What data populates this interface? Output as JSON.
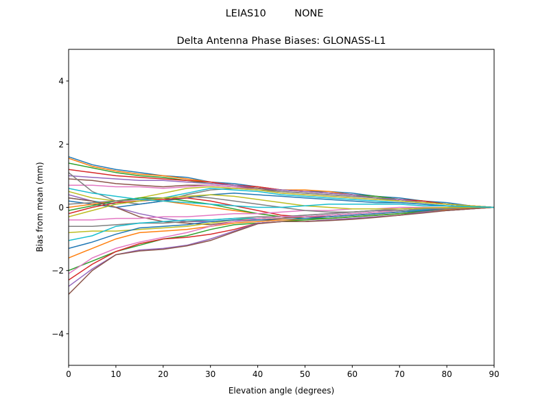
{
  "chart_data": {
    "type": "line",
    "suptitle": "LEIAS10         NONE",
    "title": "Delta Antenna Phase Biases: GLONASS-L1",
    "xlabel": "Elevation angle (degrees)",
    "ylabel": "Bias from mean (mm)",
    "xlim": [
      0,
      90
    ],
    "ylim": [
      -5,
      5
    ],
    "xticks": [
      0,
      10,
      20,
      30,
      40,
      50,
      60,
      70,
      80,
      90
    ],
    "yticks": [
      -4,
      -2,
      0,
      2,
      4
    ],
    "ytick_labels": [
      "−4",
      "−2",
      "0",
      "2",
      "4"
    ],
    "grid": false,
    "colors": [
      "#1f77b4",
      "#ff7f0e",
      "#2ca02c",
      "#d62728",
      "#9467bd",
      "#8c564b",
      "#e377c2",
      "#7f7f7f",
      "#bcbd22",
      "#17becf"
    ],
    "x": [
      0,
      5,
      10,
      15,
      20,
      25,
      30,
      35,
      40,
      45,
      50,
      55,
      60,
      65,
      70,
      75,
      80,
      85,
      90
    ],
    "series": [
      {
        "values": [
          1.6,
          1.35,
          1.2,
          1.1,
          1.0,
          0.95,
          0.8,
          0.75,
          0.65,
          0.55,
          0.5,
          0.5,
          0.45,
          0.35,
          0.3,
          0.2,
          0.15,
          0.05,
          0
        ]
      },
      {
        "values": [
          1.55,
          1.3,
          1.15,
          1.05,
          1.0,
          0.9,
          0.8,
          0.7,
          0.65,
          0.55,
          0.55,
          0.5,
          0.4,
          0.35,
          0.25,
          0.2,
          0.1,
          0.05,
          0
        ]
      },
      {
        "values": [
          1.4,
          1.25,
          1.1,
          1.0,
          0.95,
          0.85,
          0.75,
          0.7,
          0.6,
          0.55,
          0.5,
          0.45,
          0.4,
          0.35,
          0.25,
          0.2,
          0.1,
          0.05,
          0
        ]
      },
      {
        "values": [
          1.2,
          1.1,
          1.0,
          0.95,
          0.9,
          0.85,
          0.8,
          0.7,
          0.65,
          0.55,
          0.5,
          0.45,
          0.4,
          0.3,
          0.25,
          0.2,
          0.1,
          0.05,
          0
        ]
      },
      {
        "values": [
          1.0,
          0.95,
          0.9,
          0.85,
          0.85,
          0.8,
          0.75,
          0.7,
          0.6,
          0.55,
          0.5,
          0.45,
          0.4,
          0.3,
          0.25,
          0.15,
          0.1,
          0.05,
          0
        ]
      },
      {
        "values": [
          0.9,
          0.85,
          0.75,
          0.7,
          0.65,
          0.7,
          0.7,
          0.65,
          0.6,
          0.5,
          0.45,
          0.4,
          0.35,
          0.3,
          0.2,
          0.15,
          0.1,
          0.05,
          0
        ]
      },
      {
        "values": [
          0.7,
          0.7,
          0.65,
          0.65,
          0.6,
          0.65,
          0.7,
          0.65,
          0.55,
          0.45,
          0.4,
          0.35,
          0.3,
          0.25,
          0.2,
          0.15,
          0.1,
          0.05,
          0
        ]
      },
      {
        "values": [
          1.1,
          0.5,
          0.2,
          0.1,
          0.2,
          0.4,
          0.55,
          0.6,
          0.55,
          0.5,
          0.45,
          0.4,
          0.35,
          0.3,
          0.2,
          0.15,
          0.1,
          0.05,
          0
        ]
      },
      {
        "values": [
          0.5,
          0.3,
          0.2,
          0.3,
          0.45,
          0.6,
          0.65,
          0.6,
          0.55,
          0.45,
          0.4,
          0.35,
          0.3,
          0.25,
          0.2,
          0.15,
          0.1,
          0.05,
          0
        ]
      },
      {
        "values": [
          0.3,
          0.2,
          0.1,
          0.2,
          0.3,
          0.45,
          0.6,
          0.55,
          0.5,
          0.4,
          0.35,
          0.3,
          0.25,
          0.2,
          0.15,
          0.1,
          0.05,
          0.02,
          0
        ]
      },
      {
        "values": [
          0.2,
          0.1,
          0.0,
          0.1,
          0.2,
          0.3,
          0.4,
          0.45,
          0.4,
          0.35,
          0.3,
          0.25,
          0.2,
          0.15,
          0.15,
          0.1,
          0.05,
          0.02,
          0
        ]
      },
      {
        "values": [
          0.0,
          0.1,
          0.2,
          0.25,
          0.2,
          0.1,
          0.0,
          -0.1,
          -0.2,
          -0.3,
          -0.35,
          -0.3,
          -0.25,
          -0.2,
          -0.15,
          -0.1,
          -0.05,
          -0.02,
          0
        ]
      },
      {
        "values": [
          -0.1,
          0.05,
          0.2,
          0.3,
          0.3,
          0.2,
          0.1,
          -0.05,
          -0.2,
          -0.3,
          -0.35,
          -0.35,
          -0.3,
          -0.25,
          -0.2,
          -0.12,
          -0.08,
          -0.03,
          0
        ]
      },
      {
        "values": [
          -0.2,
          0.0,
          0.15,
          0.2,
          0.25,
          0.3,
          0.2,
          0.05,
          -0.1,
          -0.25,
          -0.3,
          -0.3,
          -0.25,
          -0.2,
          -0.15,
          -0.1,
          -0.05,
          -0.02,
          0
        ]
      },
      {
        "values": [
          0.4,
          0.2,
          0.0,
          -0.2,
          -0.35,
          -0.45,
          -0.45,
          -0.4,
          -0.35,
          -0.3,
          -0.25,
          -0.2,
          -0.15,
          -0.1,
          -0.05,
          0.0,
          0.0,
          0.0,
          0
        ]
      },
      {
        "values": [
          0.3,
          0.2,
          0.0,
          -0.3,
          -0.45,
          -0.5,
          -0.55,
          -0.45,
          -0.4,
          -0.35,
          -0.3,
          -0.25,
          -0.2,
          -0.15,
          -0.1,
          -0.05,
          0.0,
          0.0,
          0
        ]
      },
      {
        "values": [
          -0.4,
          -0.4,
          -0.35,
          -0.35,
          -0.3,
          -0.3,
          -0.25,
          -0.2,
          -0.2,
          -0.15,
          -0.1,
          -0.1,
          -0.05,
          -0.05,
          0.0,
          0.0,
          0.0,
          0.0,
          0
        ]
      },
      {
        "values": [
          -0.6,
          -0.6,
          -0.55,
          -0.5,
          -0.5,
          -0.45,
          -0.4,
          -0.35,
          -0.3,
          -0.3,
          -0.25,
          -0.2,
          -0.15,
          -0.1,
          -0.1,
          -0.05,
          0.0,
          0.0,
          0
        ]
      },
      {
        "values": [
          -0.8,
          -0.75,
          -0.75,
          -0.7,
          -0.65,
          -0.6,
          -0.5,
          -0.4,
          -0.35,
          -0.3,
          -0.3,
          -0.25,
          -0.2,
          -0.15,
          -0.1,
          -0.05,
          -0.02,
          0,
          0
        ]
      },
      {
        "values": [
          -1.05,
          -0.9,
          -0.6,
          -0.5,
          -0.45,
          -0.4,
          -0.4,
          -0.35,
          -0.35,
          -0.3,
          -0.3,
          -0.25,
          -0.2,
          -0.15,
          -0.1,
          -0.08,
          -0.05,
          -0.02,
          0
        ]
      },
      {
        "values": [
          -1.3,
          -1.1,
          -0.85,
          -0.65,
          -0.6,
          -0.55,
          -0.45,
          -0.4,
          -0.4,
          -0.4,
          -0.35,
          -0.3,
          -0.25,
          -0.2,
          -0.15,
          -0.1,
          -0.05,
          -0.02,
          0
        ]
      },
      {
        "values": [
          -1.6,
          -1.3,
          -1.0,
          -0.8,
          -0.75,
          -0.7,
          -0.6,
          -0.5,
          -0.45,
          -0.4,
          -0.4,
          -0.35,
          -0.3,
          -0.25,
          -0.2,
          -0.15,
          -0.08,
          -0.03,
          0
        ]
      },
      {
        "values": [
          -2.0,
          -1.7,
          -1.4,
          -1.2,
          -1.0,
          -0.9,
          -0.7,
          -0.55,
          -0.5,
          -0.45,
          -0.4,
          -0.35,
          -0.3,
          -0.25,
          -0.2,
          -0.15,
          -0.1,
          -0.05,
          0
        ]
      },
      {
        "values": [
          -2.3,
          -1.8,
          -1.4,
          -1.15,
          -1.0,
          -0.95,
          -0.85,
          -0.7,
          -0.5,
          -0.45,
          -0.45,
          -0.4,
          -0.35,
          -0.3,
          -0.25,
          -0.15,
          -0.1,
          -0.05,
          0
        ]
      },
      {
        "values": [
          -2.5,
          -1.95,
          -1.5,
          -1.35,
          -1.3,
          -1.2,
          -1.0,
          -0.75,
          -0.5,
          -0.45,
          -0.45,
          -0.4,
          -0.35,
          -0.3,
          -0.25,
          -0.15,
          -0.1,
          -0.05,
          0
        ]
      },
      {
        "values": [
          -2.75,
          -2.0,
          -1.5,
          -1.38,
          -1.33,
          -1.22,
          -1.05,
          -0.78,
          -0.52,
          -0.45,
          -0.45,
          -0.42,
          -0.38,
          -0.32,
          -0.25,
          -0.18,
          -0.1,
          -0.05,
          0
        ]
      },
      {
        "values": [
          -2.1,
          -1.6,
          -1.3,
          -1.1,
          -0.95,
          -0.8,
          -0.6,
          -0.45,
          -0.35,
          -0.3,
          -0.3,
          -0.25,
          -0.2,
          -0.15,
          -0.1,
          -0.05,
          0,
          0,
          0
        ]
      },
      {
        "values": [
          0.1,
          0.15,
          0.2,
          0.25,
          0.3,
          0.35,
          0.3,
          0.2,
          0.1,
          0.0,
          -0.1,
          -0.15,
          -0.15,
          -0.1,
          -0.1,
          -0.05,
          -0.05,
          0,
          0
        ]
      },
      {
        "values": [
          -0.3,
          -0.1,
          0.1,
          0.2,
          0.3,
          0.35,
          0.4,
          0.35,
          0.25,
          0.15,
          0.05,
          0.0,
          -0.05,
          -0.05,
          -0.05,
          -0.02,
          0,
          0,
          0
        ]
      },
      {
        "values": [
          0.6,
          0.45,
          0.35,
          0.25,
          0.2,
          0.15,
          0.1,
          0.05,
          0.0,
          0.0,
          0.05,
          0.1,
          0.1,
          0.1,
          0.1,
          0.05,
          0.05,
          0.02,
          0
        ]
      }
    ]
  }
}
